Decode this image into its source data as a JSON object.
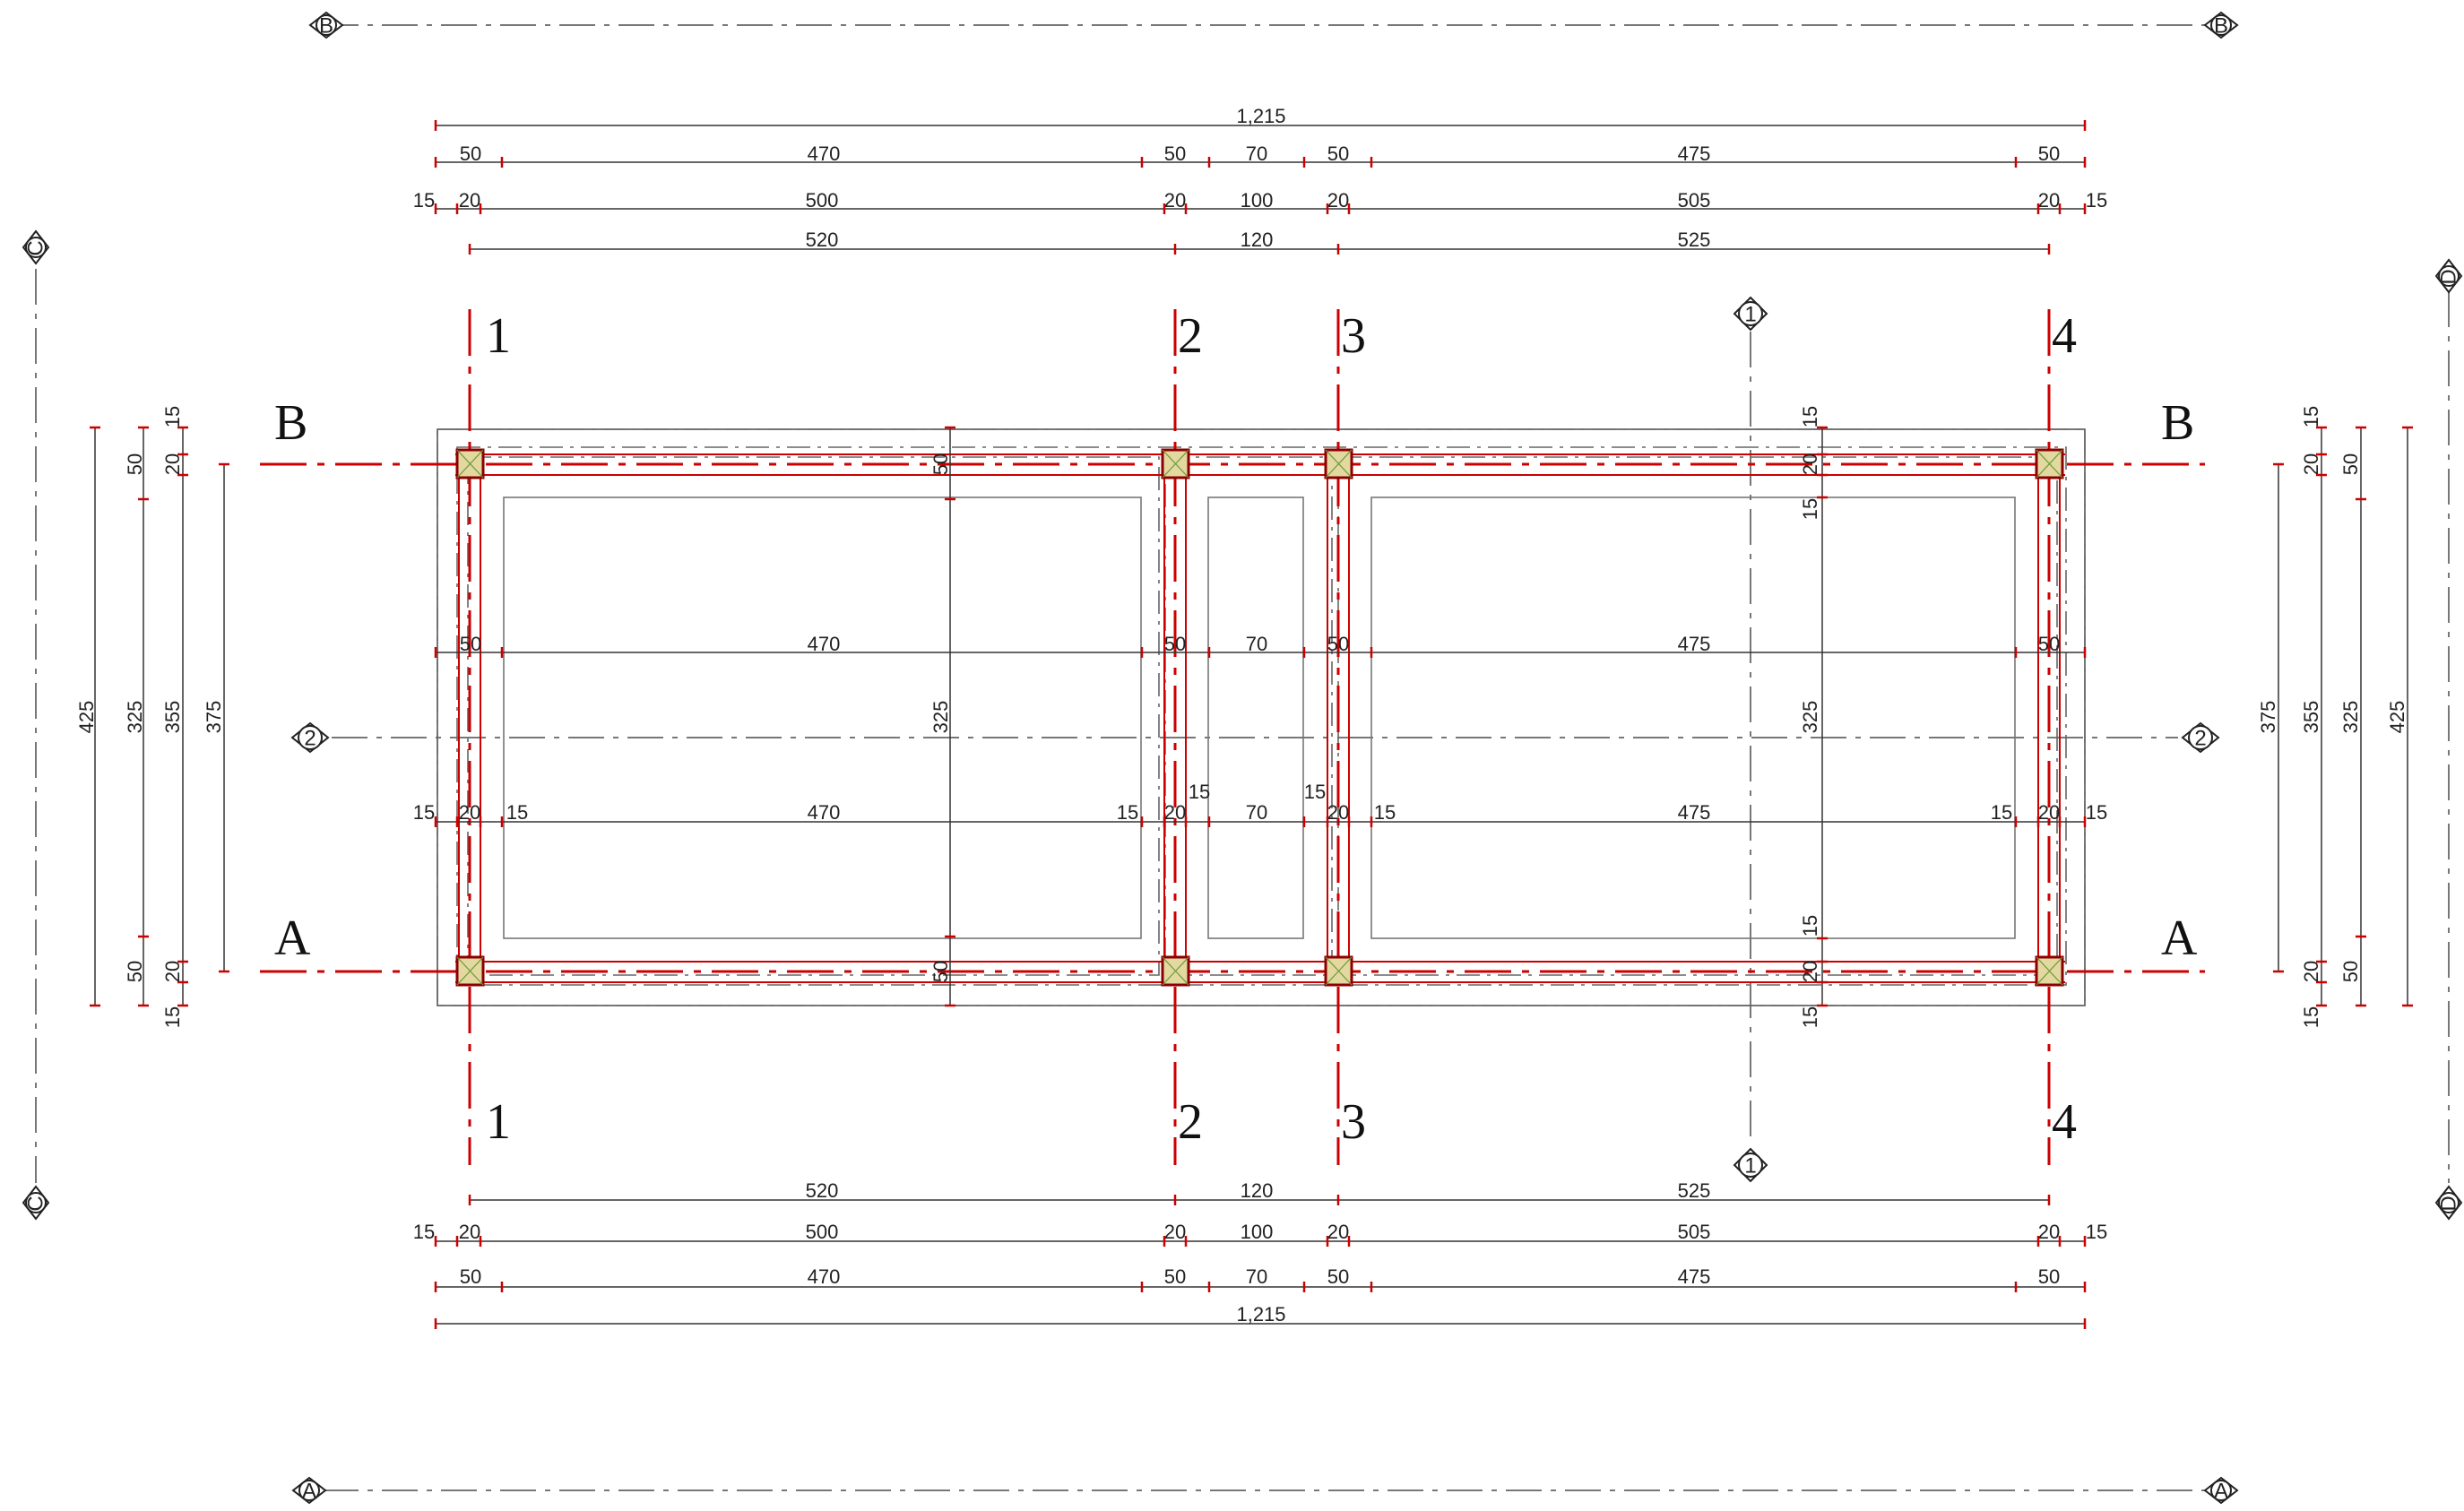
{
  "colors": {
    "grid_line": "#cc0000",
    "dimension_line": "#333333",
    "section_line": "#777777",
    "column_fill": "#e3d8a0",
    "column_stroke": "#8b0000"
  },
  "section_marks": {
    "top": "B",
    "bottom": "A",
    "left": "C",
    "right": "D",
    "center_h": "2",
    "center_v": "1"
  },
  "axes_vertical": [
    "1",
    "2",
    "3",
    "4"
  ],
  "axes_horizontal": [
    "B",
    "A"
  ],
  "dims_top": {
    "total": "1,215",
    "row2": [
      "50",
      "470",
      "50",
      "70",
      "50",
      "475",
      "50"
    ],
    "row3": [
      "15",
      "20",
      "500",
      "20",
      "100",
      "20",
      "505",
      "20",
      "15"
    ],
    "row4": [
      "520",
      "120",
      "525"
    ]
  },
  "dims_bottom": {
    "row1": [
      "520",
      "120",
      "525"
    ],
    "row2": [
      "15",
      "20",
      "500",
      "20",
      "100",
      "20",
      "505",
      "20",
      "15"
    ],
    "row3": [
      "50",
      "470",
      "50",
      "70",
      "50",
      "475",
      "50"
    ],
    "total": "1,215"
  },
  "dims_left": {
    "total": "425",
    "a": [
      "50",
      "325",
      "50"
    ],
    "b": [
      "15",
      "20",
      "355",
      "20",
      "15"
    ],
    "axis": "375"
  },
  "dims_right": {
    "total": "425",
    "a": [
      "50",
      "325",
      "50"
    ],
    "b": [
      "15",
      "20",
      "355",
      "20",
      "15"
    ],
    "axis": "375"
  },
  "dims_interior": {
    "row_a": [
      "50",
      "470",
      "50",
      "70",
      "50",
      "475",
      "50"
    ],
    "row_b": [
      "15",
      "20",
      "15",
      "470",
      "15",
      "20",
      "15",
      "70",
      "15",
      "20",
      "15",
      "475",
      "15",
      "20",
      "15"
    ],
    "col_left": [
      "50",
      "325",
      "50"
    ],
    "col_right": [
      "15",
      "20",
      "15",
      "325",
      "15",
      "20",
      "15"
    ]
  }
}
